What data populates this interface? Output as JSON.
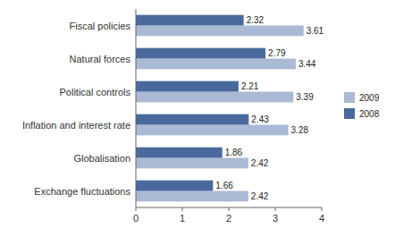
{
  "chart_data": {
    "type": "bar",
    "orientation": "horizontal",
    "categories": [
      "Fiscal policies",
      "Natural forces",
      "Political controls",
      "Inflation and interest rate",
      "Globalisation",
      "Exchange fluctuations"
    ],
    "series": [
      {
        "name": "2009",
        "color": "#aab9d4",
        "values": [
          3.61,
          3.44,
          3.39,
          3.28,
          2.42,
          2.42
        ]
      },
      {
        "name": "2008",
        "color": "#4a6a9d",
        "values": [
          2.32,
          2.79,
          2.21,
          2.43,
          1.86,
          1.66
        ]
      }
    ],
    "xlim": [
      0,
      4
    ],
    "xticks": [
      0,
      1,
      2,
      3,
      4
    ],
    "data_labels": true,
    "grid": false,
    "legend": "right"
  }
}
